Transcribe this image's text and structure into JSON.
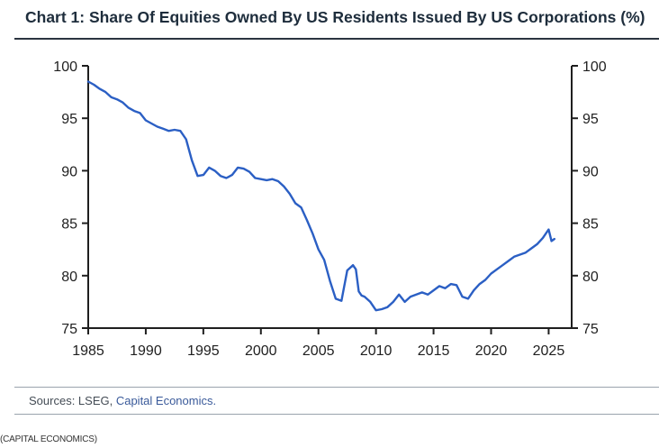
{
  "title": "Chart 1: Share Of Equities Owned By US Residents Issued By US Corporations (%)",
  "sources": {
    "prefix": "Sources: LSEG, ",
    "link": "Capital Economics."
  },
  "caption": "(CAPITAL ECONOMICS)",
  "colors": {
    "line": "#2b5fc4",
    "axis": "#1f1f1f",
    "title": "#1e2d3c"
  },
  "chart_data": {
    "type": "line",
    "title": "Chart 1: Share Of Equities Owned By US Residents Issued By US Corporations (%)",
    "xlabel": "",
    "ylabel": "",
    "xlim": [
      1985,
      2027
    ],
    "ylim": [
      75,
      100
    ],
    "x_ticks": [
      "1985",
      "1990",
      "1995",
      "2000",
      "2005",
      "2010",
      "2015",
      "2020",
      "2025"
    ],
    "y_ticks": [
      "75",
      "80",
      "85",
      "90",
      "95",
      "100"
    ],
    "y_axis_both_sides": true,
    "grid": false,
    "series": [
      {
        "name": "",
        "x": [
          1985.0,
          1985.5,
          1986.0,
          1986.5,
          1987.0,
          1987.5,
          1988.0,
          1988.5,
          1989.0,
          1989.5,
          1990.0,
          1990.5,
          1991.0,
          1991.5,
          1992.0,
          1992.5,
          1993.0,
          1993.5,
          1994.0,
          1994.5,
          1995.0,
          1995.5,
          1996.0,
          1996.5,
          1997.0,
          1997.5,
          1998.0,
          1998.5,
          1999.0,
          1999.5,
          2000.0,
          2000.5,
          2001.0,
          2001.5,
          2002.0,
          2002.5,
          2003.0,
          2003.5,
          2004.0,
          2004.5,
          2005.0,
          2005.5,
          2006.0,
          2006.5,
          2007.0,
          2007.5,
          2008.0,
          2008.25,
          2008.5,
          2008.75,
          2009.0,
          2009.5,
          2010.0,
          2010.5,
          2011.0,
          2011.5,
          2012.0,
          2012.5,
          2013.0,
          2013.5,
          2014.0,
          2014.5,
          2015.0,
          2015.5,
          2016.0,
          2016.5,
          2017.0,
          2017.5,
          2018.0,
          2018.5,
          2019.0,
          2019.5,
          2020.0,
          2020.5,
          2021.0,
          2021.5,
          2022.0,
          2022.5,
          2023.0,
          2023.5,
          2024.0,
          2024.5,
          2025.0,
          2025.25,
          2025.5
        ],
        "values": [
          98.5,
          98.2,
          97.8,
          97.5,
          97.0,
          96.8,
          96.5,
          96.0,
          95.7,
          95.5,
          94.8,
          94.5,
          94.2,
          94.0,
          93.8,
          93.9,
          93.8,
          93.0,
          91.0,
          89.5,
          89.6,
          90.3,
          90.0,
          89.5,
          89.3,
          89.6,
          90.3,
          90.2,
          89.9,
          89.3,
          89.2,
          89.1,
          89.2,
          89.0,
          88.5,
          87.8,
          86.9,
          86.5,
          85.3,
          84.0,
          82.5,
          81.5,
          79.5,
          77.8,
          77.6,
          80.5,
          81.0,
          80.6,
          78.5,
          78.1,
          78.0,
          77.5,
          76.7,
          76.8,
          77.0,
          77.5,
          78.2,
          77.5,
          78.0,
          78.2,
          78.4,
          78.2,
          78.6,
          79.0,
          78.8,
          79.2,
          79.1,
          78.0,
          77.8,
          78.6,
          79.2,
          79.6,
          80.2,
          80.6,
          81.0,
          81.4,
          81.8,
          82.0,
          82.2,
          82.6,
          83.0,
          83.6,
          84.4,
          83.3,
          83.5
        ]
      }
    ]
  }
}
